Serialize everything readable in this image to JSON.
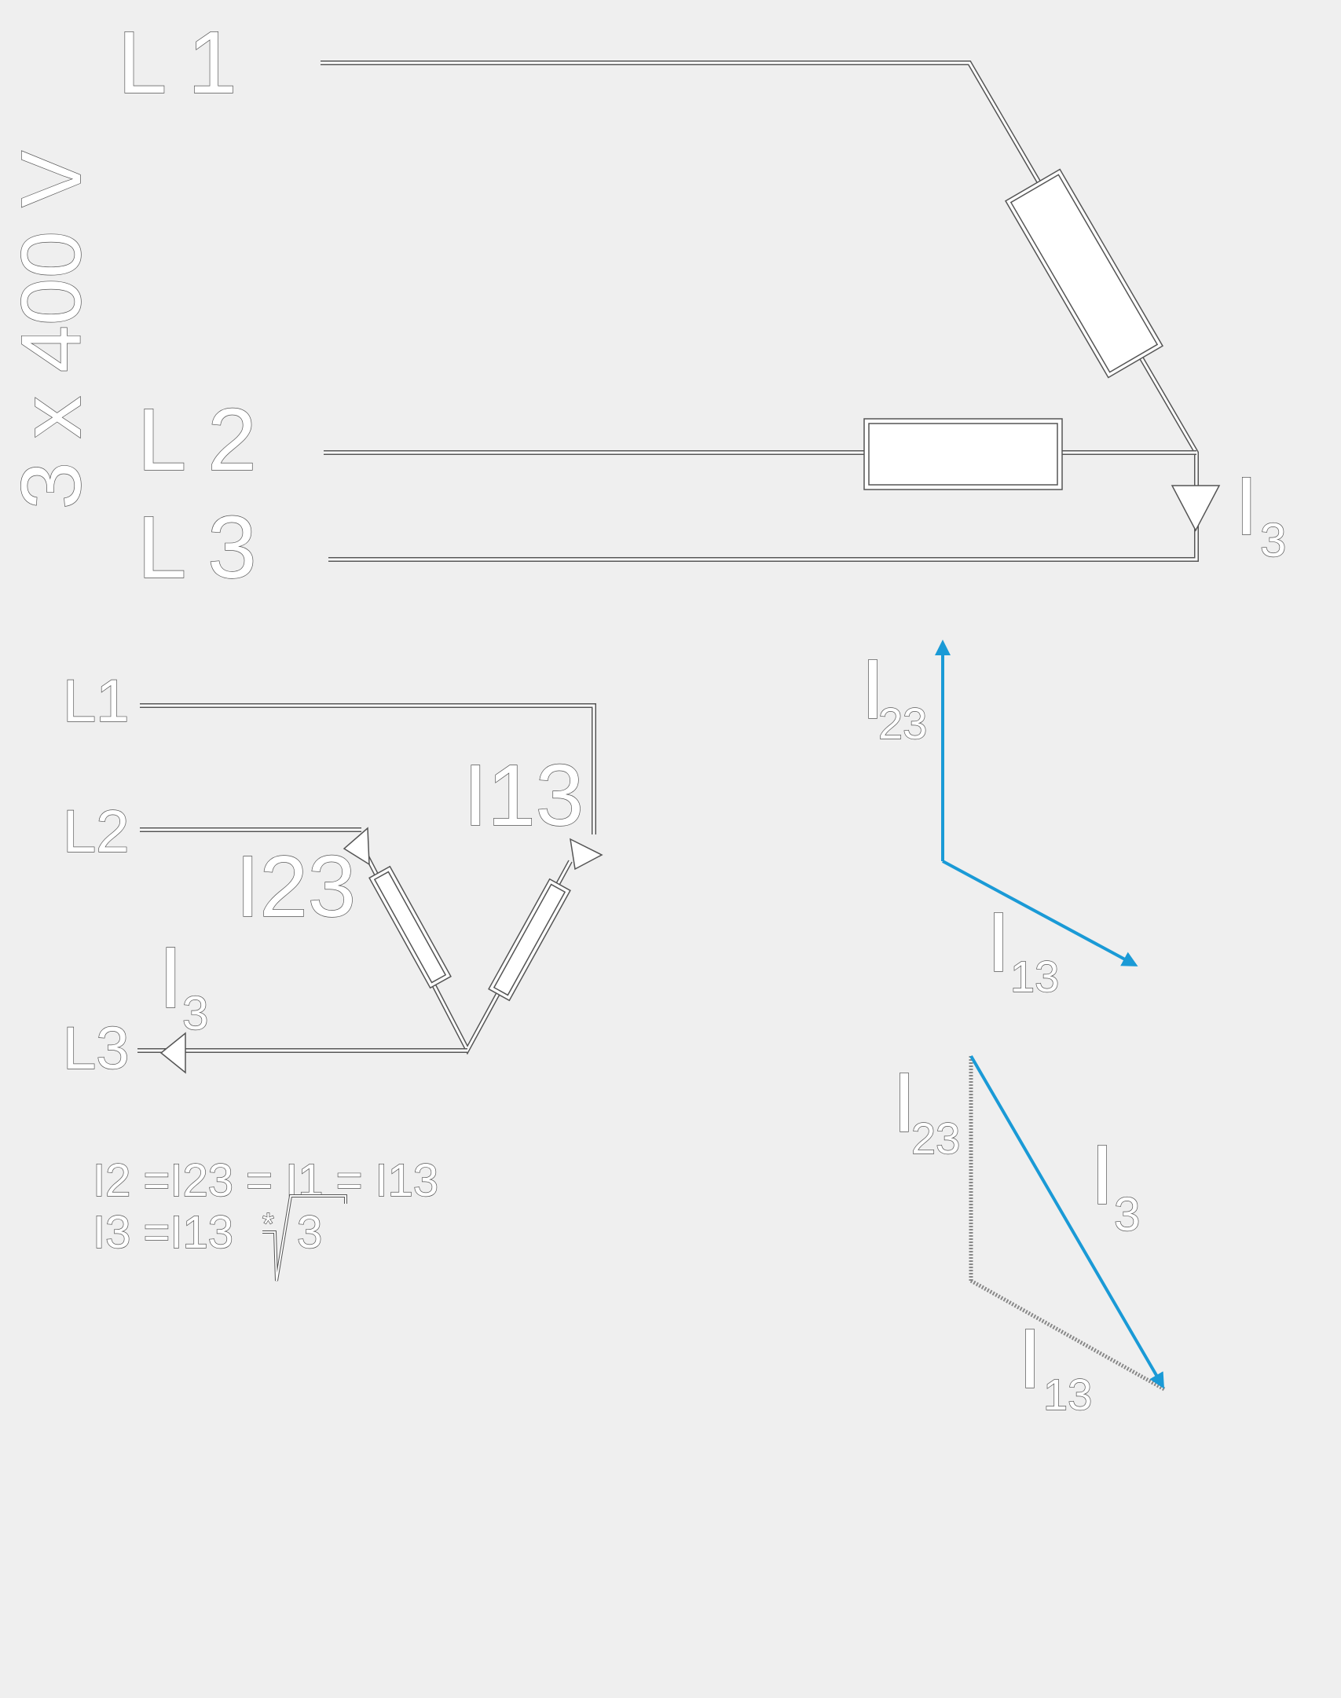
{
  "diagram": {
    "voltage_label": "3 x 400 V",
    "top_circuit": {
      "line1": "L 1",
      "line2": "L 2",
      "line3": "L 3",
      "current_symbol": "I",
      "current_sub": "3"
    },
    "delta_circuit": {
      "line1": "L1",
      "line2": "L2",
      "line3": "L3",
      "current_i13": "I13",
      "current_i23": "I23",
      "current_symbol": "I",
      "current_sub": "3"
    },
    "formulas": {
      "line1": "I2 =I23 = I1 = I13",
      "line2_prefix": "I3 =I13 ",
      "line2_star": "*",
      "line2_radicand": "3"
    },
    "phasors": {
      "top": {
        "i23_symbol": "I",
        "i23_sub": "23",
        "i13_symbol": "I",
        "i13_sub": "13"
      },
      "bottom": {
        "i23_symbol": "I",
        "i23_sub": "23",
        "i3_symbol": "I",
        "i3_sub": "3",
        "i13_symbol": "I",
        "i13_sub": "13"
      }
    },
    "colors": {
      "background": "#efefef",
      "vector": "#1a9ad6",
      "outline": "#555555"
    }
  }
}
